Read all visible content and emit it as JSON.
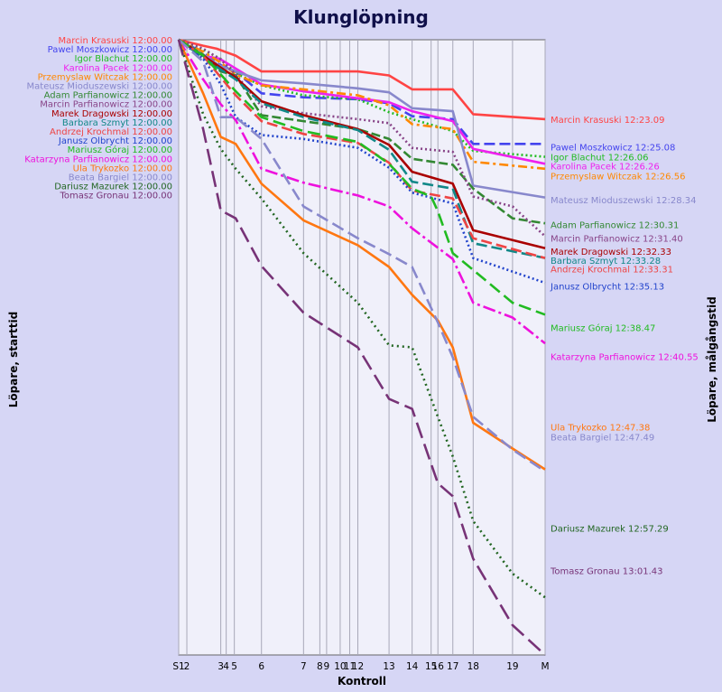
{
  "chart_data": {
    "type": "line",
    "title": "Klunglöpning",
    "xlabel": "Kontroll",
    "ylabel_left": "Löpare, starttid",
    "ylabel_right": "Löpare, målgångstid",
    "x_ticks": [
      {
        "label": "S1",
        "pos": 0
      },
      {
        "label": "2",
        "pos": 0.3
      },
      {
        "label": "3",
        "pos": 1.55
      },
      {
        "label": "4",
        "pos": 1.75
      },
      {
        "label": "5",
        "pos": 2.05
      },
      {
        "label": "6",
        "pos": 3.05
      },
      {
        "label": "7",
        "pos": 4.6
      },
      {
        "label": "8",
        "pos": 5.2
      },
      {
        "label": "9",
        "pos": 5.45
      },
      {
        "label": "10",
        "pos": 5.95
      },
      {
        "label": "11",
        "pos": 6.3
      },
      {
        "label": "12",
        "pos": 6.6
      },
      {
        "label": "13",
        "pos": 7.75
      },
      {
        "label": "14",
        "pos": 8.6
      },
      {
        "label": "15",
        "pos": 9.3
      },
      {
        "label": "16",
        "pos": 9.55
      },
      {
        "label": "17",
        "pos": 10.1
      },
      {
        "label": "18",
        "pos": 10.85
      },
      {
        "label": "19",
        "pos": 12.3
      },
      {
        "label": "M",
        "pos": 13.5
      }
    ],
    "x_range": [
      0,
      13.5
    ],
    "y_range_minutes": [
      0,
      62
    ],
    "grid": true,
    "series": [
      {
        "name": "Marcin Krasuski",
        "start": "12:00.00",
        "finish": "12:23.09",
        "color": "#ff4444",
        "dash": "",
        "points": [
          [
            0,
            0
          ],
          [
            0.9,
            0.6
          ],
          [
            1.4,
            0.9
          ],
          [
            2.1,
            1.6
          ],
          [
            3.05,
            3.2
          ],
          [
            5.5,
            3.2
          ],
          [
            6.6,
            3.2
          ],
          [
            7.75,
            3.6
          ],
          [
            8.6,
            5.0
          ],
          [
            10.1,
            5.0
          ],
          [
            10.85,
            7.5
          ],
          [
            13.5,
            8.0
          ]
        ]
      },
      {
        "name": "Pawel Moszkowicz",
        "start": "12:00.00",
        "finish": "12:25.08",
        "color": "#4444ee",
        "dash": "12,5",
        "points": [
          [
            0,
            0
          ],
          [
            0.9,
            1.3
          ],
          [
            1.5,
            2.5
          ],
          [
            2.1,
            3.2
          ],
          [
            3.05,
            5.4
          ],
          [
            4.6,
            5.8
          ],
          [
            6.6,
            6.0
          ],
          [
            7.75,
            6.4
          ],
          [
            8.6,
            7.7
          ],
          [
            10.1,
            8.0
          ],
          [
            10.85,
            10.5
          ],
          [
            13.5,
            10.5
          ]
        ]
      },
      {
        "name": "Igor Blachut",
        "start": "12:00.00",
        "finish": "12:26.06",
        "color": "#22bb22",
        "dash": "2,3",
        "points": [
          [
            0,
            0
          ],
          [
            0.9,
            1.0
          ],
          [
            1.6,
            2.0
          ],
          [
            2.1,
            3.4
          ],
          [
            3.05,
            4.6
          ],
          [
            4.6,
            5.6
          ],
          [
            6.6,
            6.0
          ],
          [
            7.75,
            7.3
          ],
          [
            8.6,
            8.0
          ],
          [
            10.1,
            9.2
          ],
          [
            10.85,
            11.2
          ],
          [
            13.5,
            11.8
          ]
        ]
      },
      {
        "name": "Karolina Pacek",
        "start": "12:00.00",
        "finish": "12:26.26",
        "color": "#ee22ee",
        "dash": "",
        "points": [
          [
            0,
            0
          ],
          [
            0.9,
            1.6
          ],
          [
            1.5,
            1.9
          ],
          [
            2.1,
            2.9
          ],
          [
            3.05,
            4.5
          ],
          [
            4.6,
            5.2
          ],
          [
            6.6,
            5.9
          ],
          [
            7.75,
            6.3
          ],
          [
            8.6,
            7.2
          ],
          [
            10.1,
            8.2
          ],
          [
            10.85,
            11.0
          ],
          [
            13.5,
            12.5
          ]
        ]
      },
      {
        "name": "Przemyslaw Witczak",
        "start": "12:00.00",
        "finish": "12:26.56",
        "color": "#ff8800",
        "dash": "10,4,3,4",
        "points": [
          [
            0,
            0
          ],
          [
            0.9,
            1.2
          ],
          [
            1.55,
            2.3
          ],
          [
            2.1,
            3.5
          ],
          [
            3.05,
            4.6
          ],
          [
            4.6,
            5.0
          ],
          [
            6.6,
            5.6
          ],
          [
            7.75,
            6.6
          ],
          [
            8.6,
            8.5
          ],
          [
            10.1,
            9.0
          ],
          [
            10.85,
            12.3
          ],
          [
            13.5,
            13.0
          ]
        ]
      },
      {
        "name": "Mateusz Mioduszewski",
        "start": "12:00.00",
        "finish": "12:28.34",
        "color": "#8888cc",
        "dash": "",
        "points": [
          [
            0,
            0
          ],
          [
            0.9,
            1.5
          ],
          [
            1.5,
            2.6
          ],
          [
            2.1,
            3.2
          ],
          [
            3.05,
            4.1
          ],
          [
            4.6,
            4.4
          ],
          [
            6.6,
            4.9
          ],
          [
            7.75,
            5.3
          ],
          [
            8.6,
            6.9
          ],
          [
            10.1,
            7.2
          ],
          [
            10.85,
            14.7
          ],
          [
            13.5,
            15.9
          ]
        ]
      },
      {
        "name": "Adam Parfianowicz",
        "start": "12:00.00",
        "finish": "12:30.31",
        "color": "#338833",
        "dash": "10,4",
        "points": [
          [
            0,
            0
          ],
          [
            0.9,
            1.5
          ],
          [
            1.55,
            3.2
          ],
          [
            2.1,
            3.6
          ],
          [
            3.05,
            7.6
          ],
          [
            4.6,
            8.2
          ],
          [
            6.6,
            9.0
          ],
          [
            7.75,
            10.0
          ],
          [
            8.6,
            12.0
          ],
          [
            10.1,
            12.6
          ],
          [
            10.85,
            15.0
          ],
          [
            12.3,
            18.0
          ],
          [
            13.5,
            18.5
          ]
        ]
      },
      {
        "name": "Marcin Parfianowicz",
        "start": "12:00.00",
        "finish": "12:31.40",
        "color": "#884488",
        "dash": "2,3",
        "points": [
          [
            0,
            0
          ],
          [
            0.9,
            0.9
          ],
          [
            1.55,
            2.0
          ],
          [
            2.1,
            3.5
          ],
          [
            3.05,
            6.7
          ],
          [
            4.6,
            7.4
          ],
          [
            6.6,
            8.0
          ],
          [
            7.75,
            8.4
          ],
          [
            8.6,
            10.9
          ],
          [
            10.1,
            11.3
          ],
          [
            10.85,
            15.8
          ],
          [
            12.3,
            16.8
          ],
          [
            13.5,
            19.8
          ]
        ]
      },
      {
        "name": "Marek Dragowski",
        "start": "12:00.00",
        "finish": "12:32.33",
        "color": "#aa0000",
        "dash": "",
        "points": [
          [
            0,
            0
          ],
          [
            0.9,
            1.6
          ],
          [
            1.55,
            2.8
          ],
          [
            2.1,
            3.8
          ],
          [
            3.05,
            6.2
          ],
          [
            4.6,
            7.6
          ],
          [
            6.6,
            9.0
          ],
          [
            7.75,
            10.6
          ],
          [
            8.6,
            13.3
          ],
          [
            10.1,
            14.5
          ],
          [
            10.85,
            19.2
          ],
          [
            13.5,
            21.0
          ]
        ]
      },
      {
        "name": "Barbara Szmyt",
        "start": "12:00.00",
        "finish": "12:33.28",
        "color": "#118888",
        "dash": "12,5",
        "points": [
          [
            0,
            0
          ],
          [
            0.9,
            1.8
          ],
          [
            1.55,
            3.0
          ],
          [
            2.1,
            4.0
          ],
          [
            3.05,
            6.4
          ],
          [
            4.6,
            7.8
          ],
          [
            6.6,
            9.1
          ],
          [
            7.75,
            11.1
          ],
          [
            8.6,
            14.3
          ],
          [
            10.1,
            15.0
          ],
          [
            10.85,
            20.5
          ],
          [
            13.5,
            22.0
          ]
        ]
      },
      {
        "name": "Andrzej Krochmal",
        "start": "12:00.00",
        "finish": "12:33.31",
        "color": "#ee4444",
        "dash": "12,5",
        "points": [
          [
            0,
            0
          ],
          [
            0.9,
            1.6
          ],
          [
            1.55,
            3.8
          ],
          [
            2.1,
            5.6
          ],
          [
            3.05,
            8.2
          ],
          [
            4.6,
            9.5
          ],
          [
            6.6,
            10.4
          ],
          [
            7.75,
            12.4
          ],
          [
            8.6,
            15.2
          ],
          [
            10.1,
            16.0
          ],
          [
            10.85,
            20.0
          ],
          [
            13.5,
            22.0
          ]
        ]
      },
      {
        "name": "Janusz Olbrycht",
        "start": "12:00.00",
        "finish": "12:35.13",
        "color": "#2244cc",
        "dash": "2,3",
        "points": [
          [
            0,
            0
          ],
          [
            0.9,
            1.9
          ],
          [
            1.55,
            4.5
          ],
          [
            2.1,
            7.8
          ],
          [
            3.05,
            9.6
          ],
          [
            4.6,
            10.0
          ],
          [
            6.6,
            10.9
          ],
          [
            7.75,
            12.9
          ],
          [
            8.6,
            15.4
          ],
          [
            10.1,
            16.5
          ],
          [
            10.85,
            22.0
          ],
          [
            13.5,
            24.5
          ]
        ]
      },
      {
        "name": "Mariusz Góraj",
        "start": "12:00.00",
        "finish": "12:38.47",
        "color": "#22bb22",
        "dash": "14,6",
        "points": [
          [
            0,
            0
          ],
          [
            0.9,
            1.6
          ],
          [
            1.55,
            3.5
          ],
          [
            2.1,
            5.2
          ],
          [
            3.05,
            7.8
          ],
          [
            4.6,
            9.2
          ],
          [
            6.6,
            10.3
          ],
          [
            7.75,
            12.5
          ],
          [
            8.6,
            15.0
          ],
          [
            9.3,
            15.8
          ],
          [
            9.55,
            17.3
          ],
          [
            10.1,
            21.5
          ],
          [
            10.85,
            23.2
          ],
          [
            12.3,
            26.5
          ],
          [
            13.5,
            27.7
          ]
        ]
      },
      {
        "name": "Katarzyna Parfianowicz",
        "start": "12:00.00",
        "finish": "12:40.55",
        "color": "#ee11dd",
        "dash": "14,4,3,4",
        "points": [
          [
            0,
            0
          ],
          [
            0.9,
            4.0
          ],
          [
            1.55,
            6.5
          ],
          [
            2.1,
            8.1
          ],
          [
            3.05,
            13.0
          ],
          [
            4.6,
            14.4
          ],
          [
            6.6,
            15.7
          ],
          [
            7.75,
            16.8
          ],
          [
            8.6,
            19.0
          ],
          [
            10.1,
            22.1
          ],
          [
            10.85,
            26.5
          ],
          [
            12.3,
            28.0
          ],
          [
            13.5,
            30.6
          ]
        ]
      },
      {
        "name": "Ula Trykozko",
        "start": "12:00.00",
        "finish": "12:47.38",
        "color": "#ff7711",
        "dash": "",
        "points": [
          [
            0,
            0
          ],
          [
            0.9,
            5.4
          ],
          [
            1.55,
            9.8
          ],
          [
            2.1,
            10.5
          ],
          [
            3.05,
            14.5
          ],
          [
            4.6,
            18.2
          ],
          [
            6.6,
            20.7
          ],
          [
            7.75,
            22.9
          ],
          [
            8.6,
            25.7
          ],
          [
            9.55,
            28.3
          ],
          [
            10.1,
            31.0
          ],
          [
            10.85,
            38.6
          ],
          [
            12.3,
            41.2
          ],
          [
            13.5,
            43.3
          ]
        ]
      },
      {
        "name": "Beata Bargiel",
        "start": "12:00.00",
        "finish": "12:47.49",
        "color": "#8888cc",
        "dash": "14,6",
        "points": [
          [
            0,
            0
          ],
          [
            0.9,
            2.2
          ],
          [
            1.55,
            7.8
          ],
          [
            2.1,
            7.8
          ],
          [
            3.05,
            10.0
          ],
          [
            4.6,
            16.8
          ],
          [
            6.6,
            20.0
          ],
          [
            7.75,
            21.6
          ],
          [
            8.6,
            22.9
          ],
          [
            9.55,
            28.5
          ],
          [
            10.1,
            32.0
          ],
          [
            10.85,
            38.0
          ],
          [
            12.3,
            41.3
          ],
          [
            13.5,
            43.5
          ]
        ]
      },
      {
        "name": "Dariusz Mazurek",
        "start": "12:00.00",
        "finish": "12:57.29",
        "color": "#226622",
        "dash": "2,4",
        "points": [
          [
            0,
            0
          ],
          [
            0.9,
            7.5
          ],
          [
            1.55,
            11.0
          ],
          [
            2.1,
            13.0
          ],
          [
            3.05,
            16.0
          ],
          [
            4.6,
            21.5
          ],
          [
            6.6,
            26.5
          ],
          [
            7.75,
            30.8
          ],
          [
            8.6,
            31.0
          ],
          [
            9.55,
            38.0
          ],
          [
            10.1,
            42.0
          ],
          [
            10.85,
            48.5
          ],
          [
            12.3,
            53.8
          ],
          [
            13.5,
            56.2
          ]
        ]
      },
      {
        "name": "Tomasz Gronau",
        "start": "12:00.00",
        "finish": "13:01.43",
        "color": "#773377",
        "dash": "18,7",
        "points": [
          [
            0,
            0
          ],
          [
            0.9,
            9.0
          ],
          [
            1.55,
            17.2
          ],
          [
            2.1,
            18.0
          ],
          [
            3.05,
            22.8
          ],
          [
            4.6,
            27.5
          ],
          [
            6.6,
            31.0
          ],
          [
            7.75,
            36.2
          ],
          [
            8.6,
            37.2
          ],
          [
            9.55,
            44.7
          ],
          [
            10.1,
            46.0
          ],
          [
            10.85,
            52.3
          ],
          [
            12.3,
            59.0
          ],
          [
            13.5,
            62.0
          ]
        ]
      }
    ],
    "right_label_offsets_minutes": [
      0,
      2.8,
      3.8,
      4.7,
      5.7,
      8.1,
      10.6,
      12.0,
      13.3,
      14.2,
      15.1,
      16.8,
      21.0,
      23.9,
      31.0,
      32.0,
      41.2,
      45.5
    ]
  }
}
